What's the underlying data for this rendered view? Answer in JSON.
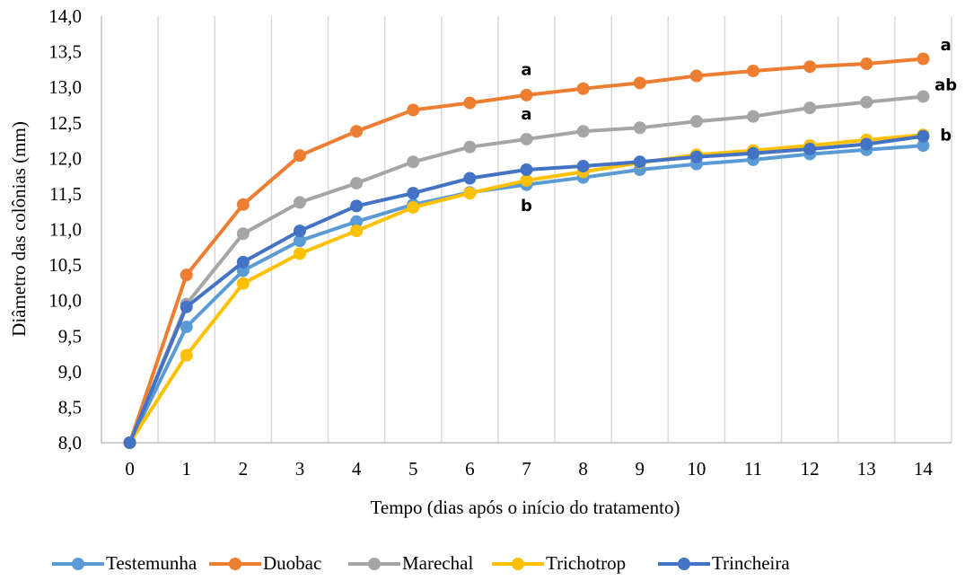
{
  "chart_data": {
    "type": "line",
    "title": "",
    "xlabel": "Tempo (dias após o início do tratamento)",
    "ylabel": "Diâmetro das colônias (mm)",
    "x": [
      0,
      1,
      2,
      3,
      4,
      5,
      6,
      7,
      8,
      9,
      10,
      11,
      12,
      13,
      14
    ],
    "x_tick_labels": [
      "0",
      "1",
      "2",
      "3",
      "4",
      "5",
      "6",
      "7",
      "8",
      "9",
      "10",
      "11",
      "12",
      "13",
      "14"
    ],
    "ylim": [
      8.0,
      14.0
    ],
    "y_tick_labels": [
      "8,0",
      "8,5",
      "9,0",
      "9,5",
      "10,0",
      "10,5",
      "11,0",
      "11,5",
      "12,0",
      "12,5",
      "13,0",
      "13,5",
      "14,0"
    ],
    "grid": "vertical",
    "legend_position": "bottom",
    "series": [
      {
        "name": "Testemunha",
        "color": "#5b9bd5",
        "values": [
          8.0,
          9.63,
          10.42,
          10.84,
          11.11,
          11.35,
          11.52,
          11.63,
          11.73,
          11.84,
          11.92,
          11.98,
          12.06,
          12.12,
          12.18
        ]
      },
      {
        "name": "Duobac",
        "color": "#ed7d31",
        "values": [
          8.0,
          10.36,
          11.35,
          12.04,
          12.38,
          12.68,
          12.78,
          12.89,
          12.98,
          13.06,
          13.16,
          13.23,
          13.29,
          13.33,
          13.4
        ]
      },
      {
        "name": "Marechal",
        "color": "#a5a5a5",
        "values": [
          8.0,
          9.95,
          10.94,
          11.38,
          11.65,
          11.95,
          12.16,
          12.27,
          12.38,
          12.43,
          12.52,
          12.59,
          12.71,
          12.79,
          12.87
        ]
      },
      {
        "name": "Trichotrop",
        "color": "#ffc000",
        "values": [
          8.0,
          9.23,
          10.24,
          10.66,
          10.98,
          11.31,
          11.51,
          11.69,
          11.81,
          11.94,
          12.05,
          12.11,
          12.18,
          12.26,
          12.33
        ]
      },
      {
        "name": "Trincheira",
        "color": "#4472c4",
        "values": [
          8.0,
          9.91,
          10.54,
          10.98,
          11.33,
          11.51,
          11.72,
          11.84,
          11.89,
          11.95,
          12.02,
          12.07,
          12.13,
          12.2,
          12.31
        ]
      }
    ],
    "annotations": [
      {
        "text": "a",
        "x": 7,
        "y": 13.17
      },
      {
        "text": "a",
        "x": 7,
        "y": 12.55
      },
      {
        "text": "b",
        "x": 7,
        "y": 11.26
      },
      {
        "text": "a",
        "x": 14.4,
        "y": 13.52
      },
      {
        "text": "ab",
        "x": 14.4,
        "y": 12.96
      },
      {
        "text": "b",
        "x": 14.4,
        "y": 12.25
      }
    ]
  }
}
